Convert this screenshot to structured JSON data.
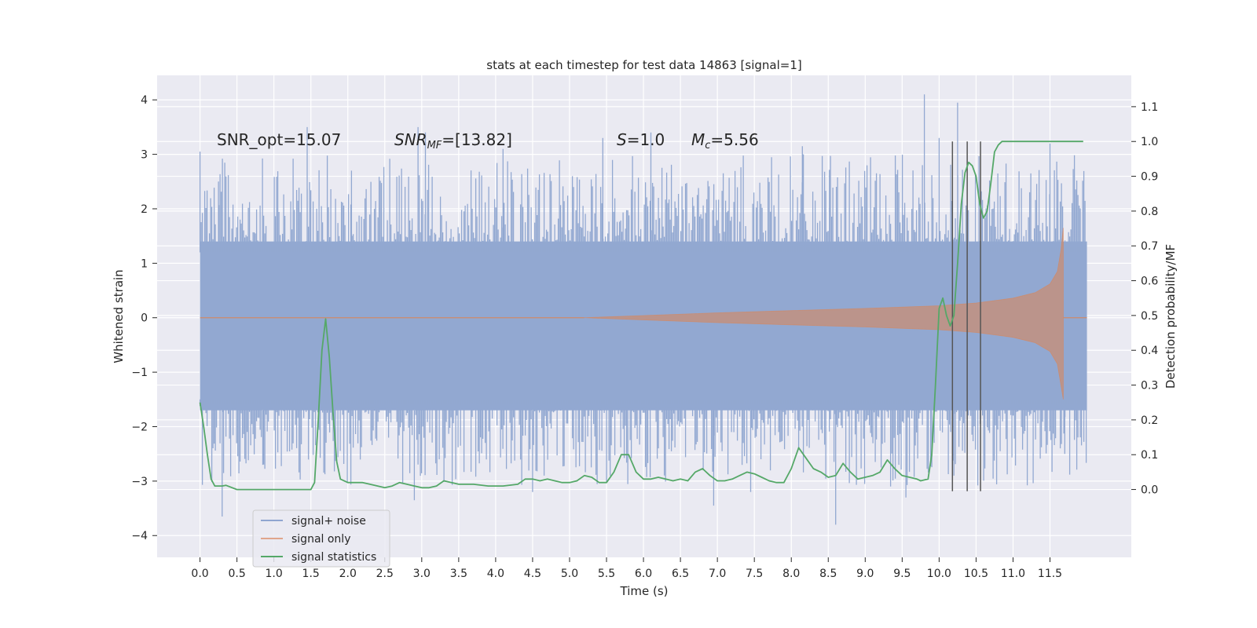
{
  "chart_data": {
    "type": "line",
    "title": "stats at each timestep for test data 14863 [signal=1]",
    "xlabel": "Time (s)",
    "ylabel_left": "Whitened strain",
    "ylabel_right": "Detection probability/MF",
    "xlim": [
      -0.58,
      12.6
    ],
    "ylim_left": [
      -4.4,
      4.45
    ],
    "ylim_right": [
      -0.195,
      1.19
    ],
    "grid": true,
    "x_ticks": [
      "0.0",
      "0.5",
      "1.0",
      "1.5",
      "2.0",
      "2.5",
      "3.0",
      "3.5",
      "4.0",
      "4.5",
      "5.0",
      "5.5",
      "6.0",
      "6.5",
      "7.0",
      "7.5",
      "8.0",
      "8.5",
      "9.0",
      "9.5",
      "10.0",
      "10.5",
      "11.0",
      "11.5"
    ],
    "y_ticks_left": [
      "4",
      "3",
      "2",
      "1",
      "0",
      "−1",
      "−2",
      "−3",
      "−4"
    ],
    "y_ticks_right": [
      "1.1",
      "1.0",
      "0.9",
      "0.8",
      "0.7",
      "0.6",
      "0.5",
      "0.4",
      "0.3",
      "0.2",
      "0.1",
      "0.0"
    ],
    "annotations": {
      "snr_opt": "SNR_opt=15.07",
      "snr_mf_main": "SNR",
      "snr_mf_sub": "MF",
      "snr_mf_value": "=[13.82]",
      "s_main": "S",
      "s_value": "=1.0",
      "mc_main": "M",
      "mc_sub": "c",
      "mc_value": "=5.56"
    },
    "legend": {
      "position": "lower-left",
      "entries": [
        {
          "label": "signal+ noise",
          "color": "#8fa5d0"
        },
        {
          "label": "signal only",
          "color": "#e0a58c"
        },
        {
          "label": "signal statistics",
          "color": "#55a868"
        }
      ]
    },
    "series": [
      {
        "name": "signal+ noise",
        "color": "#92a8d1",
        "t_start": 0.0,
        "t_end": 12.0,
        "core_envelope": [
          -1.7,
          1.4
        ],
        "peaks_high": [
          [
            0.0,
            3.05
          ],
          [
            0.25,
            2.5
          ],
          [
            1.45,
            3.5
          ],
          [
            2.05,
            2.7
          ],
          [
            2.95,
            3.5
          ],
          [
            3.05,
            3.4
          ],
          [
            4.1,
            3.1
          ],
          [
            5.45,
            3.3
          ],
          [
            6.1,
            3.4
          ],
          [
            8.15,
            3.15
          ],
          [
            9.8,
            4.1
          ],
          [
            10.0,
            3.3
          ],
          [
            10.25,
            3.95
          ],
          [
            11.5,
            3.2
          ]
        ],
        "peaks_low": [
          [
            0.3,
            -3.65
          ],
          [
            0.85,
            -2.7
          ],
          [
            2.9,
            -3.35
          ],
          [
            4.5,
            -3.2
          ],
          [
            5.55,
            -2.9
          ],
          [
            6.95,
            -3.45
          ],
          [
            7.45,
            -3.2
          ],
          [
            8.6,
            -3.8
          ],
          [
            9.55,
            -3.3
          ],
          [
            10.2,
            -2.9
          ],
          [
            11.7,
            -2.5
          ]
        ]
      },
      {
        "name": "signal only",
        "color": "#dd8452",
        "t_start": 0.0,
        "t_end": 12.0,
        "onset": 5.2,
        "merger": 11.68,
        "envelope_points": [
          [
            5.2,
            0.0
          ],
          [
            6.0,
            0.04
          ],
          [
            7.0,
            0.09
          ],
          [
            8.0,
            0.13
          ],
          [
            9.0,
            0.17
          ],
          [
            10.0,
            0.22
          ],
          [
            10.5,
            0.27
          ],
          [
            11.0,
            0.36
          ],
          [
            11.3,
            0.46
          ],
          [
            11.5,
            0.62
          ],
          [
            11.6,
            0.85
          ],
          [
            11.65,
            1.25
          ],
          [
            11.68,
            1.65
          ]
        ],
        "merger_min": -1.5
      },
      {
        "name": "signal statistics",
        "color": "#55a868",
        "axis": "right",
        "points": [
          [
            0.0,
            0.25
          ],
          [
            0.05,
            0.18
          ],
          [
            0.1,
            0.1
          ],
          [
            0.15,
            0.03
          ],
          [
            0.2,
            0.01
          ],
          [
            0.3,
            0.01
          ],
          [
            0.35,
            0.012
          ],
          [
            0.5,
            0.0
          ],
          [
            0.7,
            0.0
          ],
          [
            0.9,
            0.0
          ],
          [
            1.0,
            0.0
          ],
          [
            1.2,
            0.0
          ],
          [
            1.3,
            0.0
          ],
          [
            1.4,
            0.0
          ],
          [
            1.5,
            0.0
          ],
          [
            1.55,
            0.02
          ],
          [
            1.6,
            0.2
          ],
          [
            1.65,
            0.4
          ],
          [
            1.7,
            0.49
          ],
          [
            1.75,
            0.38
          ],
          [
            1.8,
            0.22
          ],
          [
            1.85,
            0.08
          ],
          [
            1.9,
            0.03
          ],
          [
            2.0,
            0.02
          ],
          [
            2.2,
            0.02
          ],
          [
            2.3,
            0.015
          ],
          [
            2.5,
            0.005
          ],
          [
            2.6,
            0.01
          ],
          [
            2.7,
            0.02
          ],
          [
            2.8,
            0.015
          ],
          [
            2.9,
            0.01
          ],
          [
            3.0,
            0.005
          ],
          [
            3.1,
            0.005
          ],
          [
            3.2,
            0.01
          ],
          [
            3.3,
            0.025
          ],
          [
            3.5,
            0.015
          ],
          [
            3.7,
            0.015
          ],
          [
            3.9,
            0.01
          ],
          [
            4.1,
            0.01
          ],
          [
            4.3,
            0.015
          ],
          [
            4.4,
            0.03
          ],
          [
            4.5,
            0.03
          ],
          [
            4.6,
            0.025
          ],
          [
            4.7,
            0.03
          ],
          [
            4.8,
            0.025
          ],
          [
            4.9,
            0.02
          ],
          [
            5.0,
            0.02
          ],
          [
            5.1,
            0.025
          ],
          [
            5.2,
            0.04
          ],
          [
            5.3,
            0.035
          ],
          [
            5.4,
            0.02
          ],
          [
            5.5,
            0.02
          ],
          [
            5.6,
            0.05
          ],
          [
            5.7,
            0.1
          ],
          [
            5.8,
            0.1
          ],
          [
            5.9,
            0.05
          ],
          [
            6.0,
            0.03
          ],
          [
            6.1,
            0.03
          ],
          [
            6.2,
            0.035
          ],
          [
            6.3,
            0.03
          ],
          [
            6.4,
            0.025
          ],
          [
            6.5,
            0.03
          ],
          [
            6.6,
            0.025
          ],
          [
            6.7,
            0.05
          ],
          [
            6.8,
            0.06
          ],
          [
            6.9,
            0.04
          ],
          [
            7.0,
            0.025
          ],
          [
            7.1,
            0.025
          ],
          [
            7.2,
            0.03
          ],
          [
            7.3,
            0.04
          ],
          [
            7.4,
            0.05
          ],
          [
            7.5,
            0.045
          ],
          [
            7.6,
            0.035
          ],
          [
            7.7,
            0.025
          ],
          [
            7.8,
            0.02
          ],
          [
            7.9,
            0.02
          ],
          [
            8.0,
            0.06
          ],
          [
            8.1,
            0.12
          ],
          [
            8.2,
            0.09
          ],
          [
            8.3,
            0.06
          ],
          [
            8.4,
            0.05
          ],
          [
            8.5,
            0.035
          ],
          [
            8.6,
            0.04
          ],
          [
            8.7,
            0.075
          ],
          [
            8.8,
            0.05
          ],
          [
            8.9,
            0.03
          ],
          [
            9.0,
            0.035
          ],
          [
            9.1,
            0.04
          ],
          [
            9.2,
            0.05
          ],
          [
            9.3,
            0.085
          ],
          [
            9.4,
            0.06
          ],
          [
            9.5,
            0.04
          ],
          [
            9.6,
            0.035
          ],
          [
            9.7,
            0.03
          ],
          [
            9.75,
            0.025
          ],
          [
            9.85,
            0.03
          ],
          [
            9.9,
            0.1
          ],
          [
            9.95,
            0.3
          ],
          [
            10.0,
            0.52
          ],
          [
            10.05,
            0.55
          ],
          [
            10.1,
            0.5
          ],
          [
            10.15,
            0.47
          ],
          [
            10.2,
            0.5
          ],
          [
            10.25,
            0.65
          ],
          [
            10.3,
            0.82
          ],
          [
            10.35,
            0.91
          ],
          [
            10.4,
            0.94
          ],
          [
            10.45,
            0.93
          ],
          [
            10.5,
            0.9
          ],
          [
            10.55,
            0.82
          ],
          [
            10.6,
            0.78
          ],
          [
            10.65,
            0.8
          ],
          [
            10.7,
            0.88
          ],
          [
            10.75,
            0.97
          ],
          [
            10.8,
            0.99
          ],
          [
            10.85,
            1.0
          ],
          [
            11.0,
            1.0
          ],
          [
            11.5,
            1.0
          ],
          [
            11.95,
            1.0
          ]
        ]
      }
    ],
    "vertical_markers": [
      10.18,
      10.38,
      10.56
    ],
    "vertical_marker_range_right": [
      -0.005,
      1.0
    ]
  }
}
